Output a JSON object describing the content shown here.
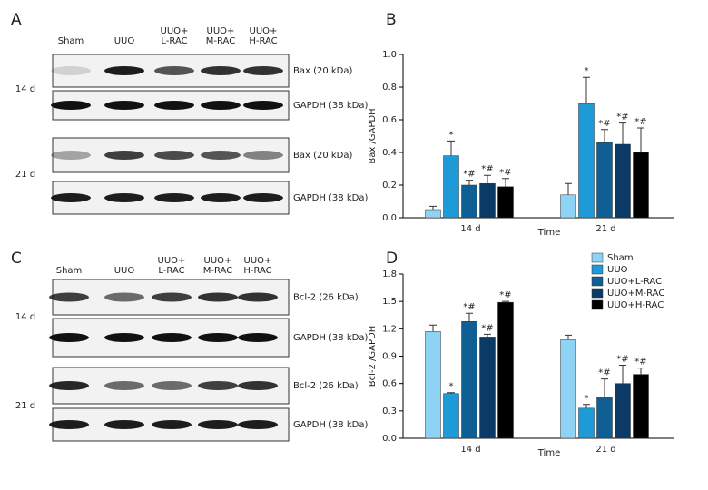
{
  "panel_labels": [
    "A",
    "B",
    "C",
    "D"
  ],
  "blots": [
    {
      "lanes": [
        [
          "Sham"
        ],
        [
          "UUO"
        ],
        [
          "UUO+",
          "L-RAC"
        ],
        [
          "UUO+",
          "M-RAC"
        ],
        [
          "UUO+",
          "H-RAC"
        ]
      ],
      "rows": [
        {
          "time": "14 d",
          "labels": [
            "Bax (20 kDa)",
            "GAPDH (38 kDa)"
          ]
        },
        {
          "time": "21 d",
          "labels": [
            "Bax (20 kDa)",
            "GAPDH (38 kDa)"
          ]
        }
      ]
    },
    {
      "lanes": [
        [
          "Sham"
        ],
        [
          "UUO"
        ],
        [
          "UUO+",
          "L-RAC"
        ],
        [
          "UUO+",
          "M-RAC"
        ],
        [
          "UUO+",
          "H-RAC"
        ]
      ],
      "rows": [
        {
          "time": "14 d",
          "labels": [
            "Bcl-2 (26 kDa)",
            "GAPDH (38 kDa)"
          ]
        },
        {
          "time": "21 d",
          "labels": [
            "Bcl-2 (26 kDa)",
            "GAPDH (38 kDa)"
          ]
        }
      ]
    }
  ],
  "chart_data": [
    {
      "type": "bar",
      "ylabel": "Bax /GAPDH",
      "xlabel": "Time",
      "categories": [
        "14 d",
        "21 d"
      ],
      "ylim": [
        0,
        1.0
      ],
      "yticks": [
        {
          "value": 0,
          "label": "0.0"
        },
        0.2,
        0.4,
        0.6,
        0.8,
        {
          "value": 1.0,
          "label": "1.0"
        }
      ],
      "legend": false,
      "series": [
        {
          "color": "#8fd3f4",
          "values": [
            0.05,
            0.14
          ],
          "errors": [
            0.02,
            0.07
          ],
          "annotations": [
            null,
            null
          ]
        },
        {
          "color": "#1e9ad6",
          "values": [
            0.38,
            0.7
          ],
          "errors": [
            0.09,
            0.16
          ],
          "annotations": [
            "*",
            "*"
          ]
        },
        {
          "color": "#0f5f94",
          "values": [
            0.2,
            0.46
          ],
          "errors": [
            0.03,
            0.08
          ],
          "annotations": [
            "*#",
            "*#"
          ]
        },
        {
          "color": "#0b3a66",
          "values": [
            0.21,
            0.45
          ],
          "errors": [
            0.05,
            0.13
          ],
          "annotations": [
            "*#",
            "*#"
          ]
        },
        {
          "color": "#000000",
          "values": [
            0.19,
            0.4
          ],
          "errors": [
            0.05,
            0.15
          ],
          "annotations": [
            "*#",
            "*#"
          ]
        }
      ]
    },
    {
      "type": "bar",
      "ylabel": "Bcl-2 /GAPDH",
      "xlabel": "Time",
      "categories": [
        "14 d",
        "21 d"
      ],
      "ylim": [
        0,
        1.8
      ],
      "yticks": [
        {
          "value": 0,
          "label": "0.0"
        },
        0.3,
        0.6,
        0.9,
        1.2,
        1.5,
        1.8
      ],
      "legend": "upper right",
      "series": [
        {
          "name": "Sham",
          "color": "#8fd3f4",
          "values": [
            1.17,
            1.08
          ],
          "errors": [
            0.07,
            0.05
          ],
          "annotations": [
            null,
            null
          ]
        },
        {
          "name": "UUO",
          "color": "#1e9ad6",
          "values": [
            0.49,
            0.33
          ],
          "errors": [
            0.01,
            0.04
          ],
          "annotations": [
            "*",
            "*"
          ]
        },
        {
          "name": "UUO+L-RAC",
          "color": "#0f5f94",
          "values": [
            1.28,
            0.45
          ],
          "errors": [
            0.09,
            0.2
          ],
          "annotations": [
            "*#",
            "*#"
          ]
        },
        {
          "name": "UUO+M-RAC",
          "color": "#0b3a66",
          "values": [
            1.11,
            0.6
          ],
          "errors": [
            0.03,
            0.2
          ],
          "annotations": [
            "*#",
            "*#"
          ]
        },
        {
          "name": "UUO+H-RAC",
          "color": "#000000",
          "values": [
            1.49,
            0.7
          ],
          "errors": [
            0.01,
            0.07
          ],
          "annotations": [
            "*#",
            "*#"
          ]
        }
      ]
    }
  ]
}
